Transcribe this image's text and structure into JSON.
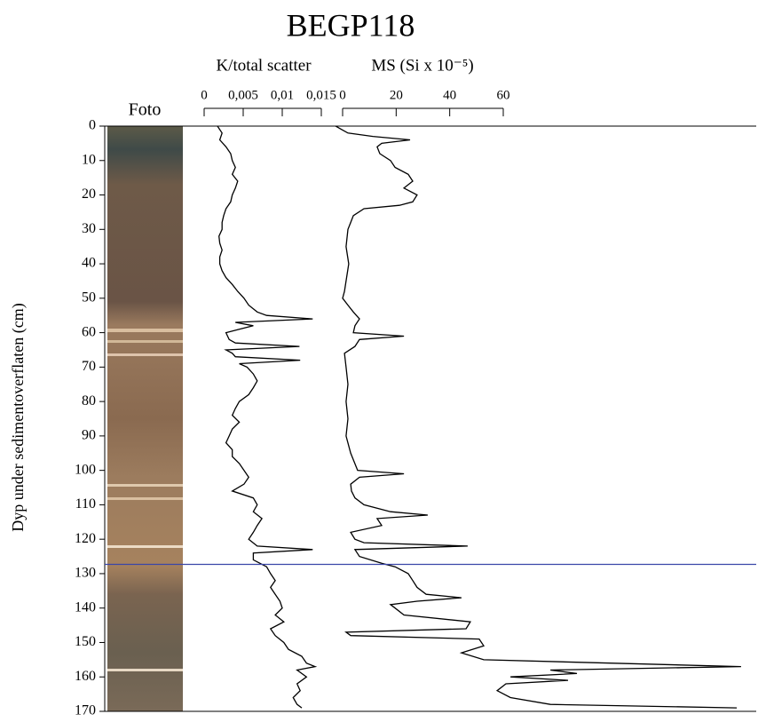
{
  "chart_data": {
    "type": "depth-log",
    "title": "BEGP118",
    "ylabel": "Dyp under sedimentoverflaten (cm)",
    "photo_label": "Foto",
    "ylim": [
      0,
      170
    ],
    "yticks": [
      0,
      10,
      20,
      30,
      40,
      50,
      60,
      70,
      80,
      90,
      100,
      110,
      120,
      130,
      140,
      150,
      160,
      170
    ],
    "hline": {
      "value": 127.3,
      "color": "#3a46a8"
    },
    "series": [
      {
        "name": "K/total scatter",
        "color": "#000000",
        "xlim": [
          0,
          0.015
        ],
        "xticks": [
          0,
          {
            "value": 0.005,
            "label": "0,005"
          },
          {
            "value": 0.01,
            "label": "0,01"
          },
          {
            "value": 0.015,
            "label": "0,015"
          }
        ],
        "depth": [
          0,
          2,
          4,
          6,
          8,
          10,
          12,
          14,
          16,
          18,
          20,
          22,
          24,
          26,
          28,
          30,
          32,
          34,
          36,
          38,
          40,
          42,
          44,
          46,
          48,
          50,
          52,
          54,
          55,
          56,
          57,
          58,
          59,
          60,
          62,
          63,
          64,
          65,
          66,
          67,
          68,
          69,
          70,
          72,
          74,
          76,
          78,
          80,
          82,
          84,
          86,
          88,
          90,
          92,
          94,
          96,
          98,
          100,
          102,
          104,
          106,
          108,
          110,
          112,
          114,
          116,
          118,
          120,
          122,
          123,
          124,
          126,
          128,
          130,
          132,
          134,
          136,
          138,
          140,
          142,
          144,
          146,
          148,
          150,
          152,
          154,
          156,
          157,
          158,
          160,
          162,
          164,
          166,
          168,
          169
        ],
        "values": [
          0.0017,
          0.0023,
          0.002,
          0.0028,
          0.0034,
          0.0036,
          0.004,
          0.0036,
          0.0043,
          0.004,
          0.0036,
          0.0034,
          0.0028,
          0.0025,
          0.0023,
          0.0023,
          0.0019,
          0.002,
          0.0023,
          0.002,
          0.002,
          0.0023,
          0.0028,
          0.0036,
          0.0043,
          0.0051,
          0.0057,
          0.0068,
          0.008,
          0.0139,
          0.004,
          0.0063,
          0.0045,
          0.0028,
          0.0032,
          0.004,
          0.0122,
          0.0028,
          0.0036,
          0.004,
          0.0123,
          0.0045,
          0.0055,
          0.0063,
          0.0068,
          0.0063,
          0.0057,
          0.0045,
          0.004,
          0.0036,
          0.0045,
          0.0036,
          0.0032,
          0.0028,
          0.0036,
          0.0036,
          0.0045,
          0.0051,
          0.0057,
          0.0051,
          0.0036,
          0.0063,
          0.0068,
          0.0063,
          0.0074,
          0.0068,
          0.0063,
          0.0057,
          0.0068,
          0.0139,
          0.0063,
          0.0063,
          0.008,
          0.0085,
          0.0091,
          0.0085,
          0.0091,
          0.0097,
          0.01,
          0.0091,
          0.0102,
          0.0085,
          0.0091,
          0.0102,
          0.0108,
          0.0125,
          0.0131,
          0.0142,
          0.0119,
          0.0131,
          0.0119,
          0.0123,
          0.0114,
          0.0119,
          0.0125
        ]
      },
      {
        "name": "MS (Si x 10⁻⁵)",
        "color": "#000000",
        "xlim": [
          0,
          60
        ],
        "xticks": [
          0,
          20,
          40,
          60
        ],
        "depth": [
          0,
          1,
          2,
          3,
          4,
          5,
          6,
          8,
          10,
          12,
          14,
          16,
          18,
          20,
          22,
          23,
          24,
          26,
          28,
          30,
          35,
          40,
          45,
          48,
          50,
          52,
          54,
          56,
          58,
          60,
          61,
          62,
          64,
          66,
          70,
          75,
          80,
          85,
          90,
          95,
          100,
          101,
          102,
          104,
          106,
          108,
          110,
          112,
          113,
          114,
          116,
          118,
          120,
          121,
          122,
          123,
          125,
          127,
          128,
          130,
          132,
          134,
          136,
          137,
          138,
          139,
          140,
          142,
          144,
          146,
          147,
          148,
          149,
          151,
          153,
          155,
          157,
          158,
          159,
          160,
          161,
          162,
          164,
          166,
          168,
          169
        ],
        "values": [
          -2.6,
          -0.3,
          2,
          11.3,
          25.2,
          14.6,
          12.9,
          13.9,
          17.9,
          19.6,
          24.5,
          26.2,
          22.9,
          27.8,
          26.2,
          21.2,
          8,
          4,
          3,
          2,
          1.3,
          2.3,
          1.3,
          0.7,
          0,
          2,
          4,
          6.3,
          4.6,
          4,
          22.9,
          6.3,
          4.6,
          0.7,
          1.3,
          2,
          1.3,
          2,
          1.3,
          3,
          5.6,
          22.9,
          6.3,
          3,
          3.3,
          4.6,
          8,
          17.9,
          31.8,
          12.9,
          14.6,
          3,
          4.6,
          8,
          46.7,
          4.6,
          6.3,
          14.6,
          19.6,
          24.5,
          26.2,
          27.8,
          31.2,
          44.4,
          27.8,
          17.9,
          19.6,
          22.9,
          47.7,
          46.1,
          1.3,
          3,
          51,
          52.7,
          44.4,
          52.7,
          148.8,
          77.6,
          87.5,
          62.7,
          84.2,
          61,
          57.7,
          62.7,
          77.6,
          147.2
        ]
      }
    ]
  }
}
